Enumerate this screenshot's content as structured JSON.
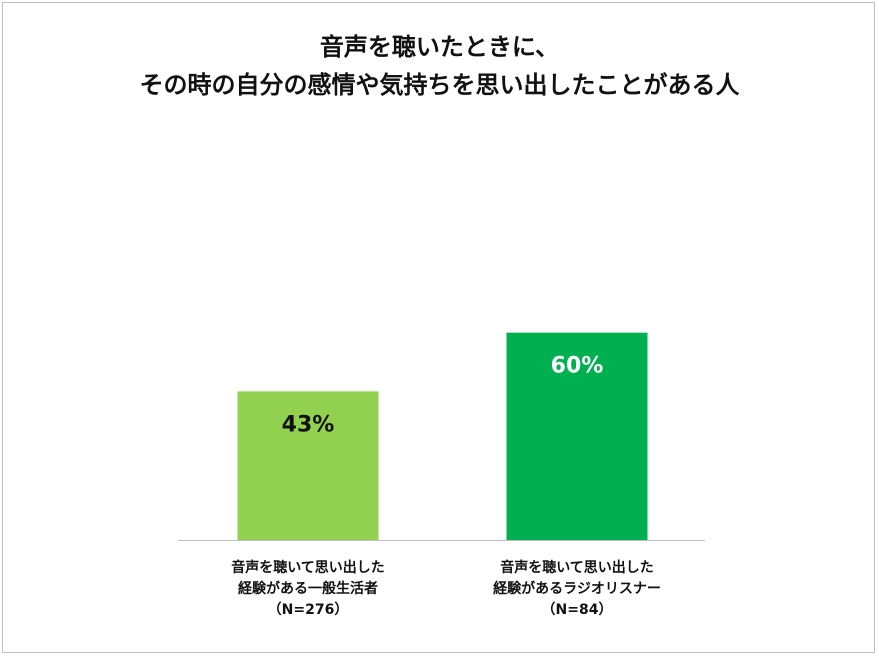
{
  "chart_data": {
    "type": "bar",
    "title_lines": [
      "音声を聴いたときに、",
      "その時の自分の感情や気持ちを思い出したことがある人"
    ],
    "categories": [
      {
        "lines": [
          "音声を聴いて思い出した",
          "経験がある一般生活者",
          "（N=276）"
        ],
        "value": 43,
        "label": "43%",
        "color": "#92d050",
        "label_color": "#111111"
      },
      {
        "lines": [
          "音声を聴いて思い出した",
          "経験があるラジオリスナー",
          "（N=84）"
        ],
        "value": 60,
        "label": "60%",
        "color": "#00b050",
        "label_color": "#ffffff"
      }
    ],
    "ylim": [
      0,
      100
    ],
    "unit": "%",
    "grid": false,
    "axis_color": "#bfbfbf"
  }
}
